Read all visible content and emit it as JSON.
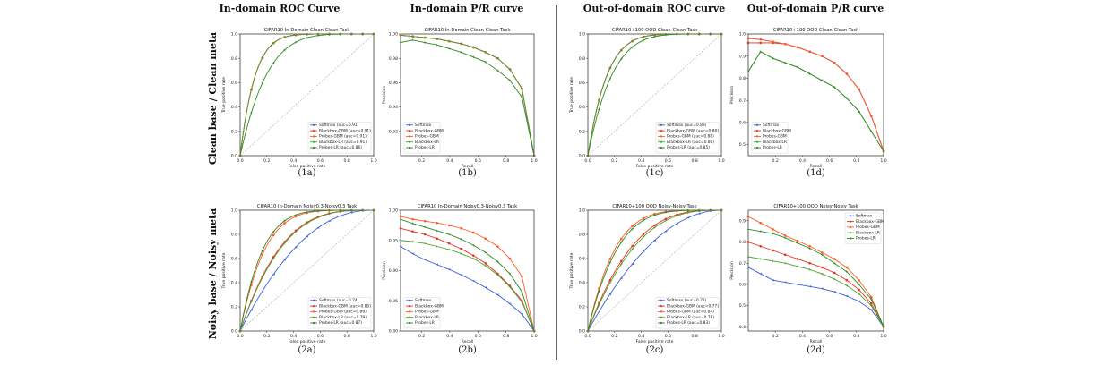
{
  "column_headers": [
    "In-domain ROC Curve",
    "In-domain P/R curve",
    "Out-of-domain ROC curve",
    "Out-of-domain P/R curve"
  ],
  "row_labels": [
    "Clean base / Clean meta",
    "Noisy base / Noisy meta"
  ],
  "colors": {
    "Softmax": "#3a5fe0",
    "Blackbox-GBM": "#e8321e",
    "Probes-GBM": "#ff5a28",
    "Blackbox-LR": "#4e9e30",
    "Probes-LR": "#2c8a1e"
  },
  "chart_data": [
    {
      "id": "1a",
      "caption": "(1a)",
      "type": "line",
      "title": "CIFAR10 In-Domain Clean-Clean Task",
      "xlabel": "False positive rate",
      "ylabel": "True positive rate",
      "xlim": [
        0,
        1
      ],
      "ylim": [
        0,
        1
      ],
      "xticks": [
        "0.0",
        "0.2",
        "0.4",
        "0.6",
        "0.8",
        "1.0"
      ],
      "yticks": [
        "0.0",
        "0.2",
        "0.4",
        "0.6",
        "0.8",
        "1.0"
      ],
      "diagonal": true,
      "legend_position": "lower-right",
      "series": [
        {
          "name": "Softmax (auc=0.91)",
          "family": "Softmax",
          "k": 9
        },
        {
          "name": "Blackbox-GBM (auc=0.91)",
          "family": "Blackbox-GBM",
          "k": 9
        },
        {
          "name": "Probes-GBM (auc=0.91)",
          "family": "Probes-GBM",
          "k": 9
        },
        {
          "name": "Blackbox-LR (auc=0.91)",
          "family": "Blackbox-LR",
          "k": 9
        },
        {
          "name": "Probes-LR (auc=0.86)",
          "family": "Probes-LR",
          "k": 5
        }
      ]
    },
    {
      "id": "1b",
      "caption": "(1b)",
      "type": "line",
      "title": "CIFAR10 In-Domain Clean-Clean Task",
      "xlabel": "Recall",
      "ylabel": "Precision",
      "xlim": [
        0.05,
        1
      ],
      "ylim": [
        0.9,
        1.0
      ],
      "xticks": [
        "0.2",
        "0.4",
        "0.6",
        "0.8",
        "1.0"
      ],
      "yticks": [
        "0.92",
        "0.94",
        "0.96",
        "0.98",
        "1.00"
      ],
      "legend_position": "lower-left",
      "series": [
        {
          "name": "Softmax",
          "family": "Softmax",
          "y": [
            0.999,
            0.998,
            0.997,
            0.996,
            0.994,
            0.992,
            0.989,
            0.985,
            0.98,
            0.971,
            0.955,
            0.9
          ]
        },
        {
          "name": "Blackbox-GBM",
          "family": "Blackbox-GBM",
          "y": [
            0.999,
            0.998,
            0.997,
            0.996,
            0.994,
            0.992,
            0.989,
            0.985,
            0.98,
            0.971,
            0.955,
            0.9
          ]
        },
        {
          "name": "Probes-GBM",
          "family": "Probes-GBM",
          "y": [
            0.999,
            0.998,
            0.997,
            0.996,
            0.994,
            0.992,
            0.989,
            0.985,
            0.98,
            0.971,
            0.955,
            0.9
          ]
        },
        {
          "name": "Blackbox-LR",
          "family": "Blackbox-LR",
          "y": [
            0.999,
            0.998,
            0.997,
            0.996,
            0.994,
            0.992,
            0.989,
            0.985,
            0.98,
            0.971,
            0.955,
            0.9
          ]
        },
        {
          "name": "Probes-LR",
          "family": "Probes-LR",
          "y": [
            0.993,
            0.995,
            0.993,
            0.991,
            0.988,
            0.985,
            0.981,
            0.977,
            0.97,
            0.962,
            0.948,
            0.9
          ]
        }
      ]
    },
    {
      "id": "1c",
      "caption": "(1c)",
      "type": "line",
      "title": "CIFAR10+100 OOD Clean-Clean Task",
      "xlabel": "False positive rate",
      "ylabel": "True positive rate",
      "xlim": [
        0,
        1
      ],
      "ylim": [
        0,
        1
      ],
      "xticks": [
        "0.0",
        "0.2",
        "0.4",
        "0.6",
        "0.8",
        "1.0"
      ],
      "yticks": [
        "0.0",
        "0.2",
        "0.4",
        "0.6",
        "0.8",
        "1.0"
      ],
      "diagonal": true,
      "legend_position": "lower-right",
      "series": [
        {
          "name": "Softmax (auc=0.88)",
          "family": "Softmax",
          "k": 7
        },
        {
          "name": "Blackbox-GBM (auc=0.88)",
          "family": "Blackbox-GBM",
          "k": 7
        },
        {
          "name": "Probes-GBM (auc=0.88)",
          "family": "Probes-GBM",
          "k": 7
        },
        {
          "name": "Blackbox-LR (auc=0.88)",
          "family": "Blackbox-LR",
          "k": 7
        },
        {
          "name": "Probes-LR (auc=0.85)",
          "family": "Probes-LR",
          "k": 5.5
        }
      ]
    },
    {
      "id": "1d",
      "caption": "(1d)",
      "type": "line",
      "title": "CIFAR10+100 OOD Clean-Clean Task",
      "xlabel": "Recall",
      "ylabel": "Precision",
      "xlim": [
        0,
        1
      ],
      "ylim": [
        0.45,
        1.0
      ],
      "xticks": [
        "0.2",
        "0.4",
        "0.6",
        "0.8",
        "1.0"
      ],
      "yticks": [
        "0.5",
        "0.6",
        "0.7",
        "0.8",
        "0.9",
        "1.0"
      ],
      "legend_position": "lower-left",
      "series": [
        {
          "name": "Softmax",
          "family": "Softmax",
          "y": [
            0.98,
            0.975,
            0.965,
            0.955,
            0.94,
            0.92,
            0.9,
            0.87,
            0.82,
            0.75,
            0.63,
            0.47
          ]
        },
        {
          "name": "Blackbox-GBM",
          "family": "Blackbox-GBM",
          "y": [
            0.96,
            0.96,
            0.96,
            0.955,
            0.94,
            0.92,
            0.9,
            0.87,
            0.82,
            0.75,
            0.63,
            0.47
          ]
        },
        {
          "name": "Probes-GBM",
          "family": "Probes-GBM",
          "y": [
            0.98,
            0.975,
            0.965,
            0.955,
            0.94,
            0.92,
            0.9,
            0.87,
            0.82,
            0.75,
            0.63,
            0.47
          ]
        },
        {
          "name": "Blackbox-LR",
          "family": "Blackbox-LR",
          "y": [
            0.83,
            0.92,
            0.89,
            0.87,
            0.85,
            0.82,
            0.79,
            0.76,
            0.71,
            0.65,
            0.56,
            0.47
          ]
        },
        {
          "name": "Probes-LR",
          "family": "Probes-LR",
          "y": [
            0.83,
            0.92,
            0.89,
            0.87,
            0.85,
            0.82,
            0.79,
            0.76,
            0.71,
            0.65,
            0.56,
            0.47
          ]
        }
      ]
    },
    {
      "id": "2a",
      "caption": "(2a)",
      "type": "line",
      "title": "CIFAR10 In-Domain Noisy0.3-Noisy0.3 Task",
      "xlabel": "False positive rate",
      "ylabel": "True positive rate",
      "xlim": [
        0,
        1
      ],
      "ylim": [
        0,
        1
      ],
      "xticks": [
        "0.0",
        "0.2",
        "0.4",
        "0.6",
        "0.8",
        "1.0"
      ],
      "yticks": [
        "0.0",
        "0.2",
        "0.4",
        "0.6",
        "0.8",
        "1.0"
      ],
      "diagonal": true,
      "legend_position": "lower-right",
      "series": [
        {
          "name": "Softmax (auc=0.74)",
          "family": "Softmax",
          "k": 2.2
        },
        {
          "name": "Blackbox-GBM (auc=0.80)",
          "family": "Blackbox-GBM",
          "k": 3.3
        },
        {
          "name": "Probes-GBM (auc=0.86)",
          "family": "Probes-GBM",
          "k": 5.5
        },
        {
          "name": "Blackbox-LR (auc=0.79)",
          "family": "Blackbox-LR",
          "k": 3.2
        },
        {
          "name": "Probes-LR (auc=0.87)",
          "family": "Probes-LR",
          "k": 6
        }
      ]
    },
    {
      "id": "2b",
      "caption": "(2b)",
      "type": "line",
      "title": "CIFAR10 In-Domain Noisy0.3-Noisy0.3 Task",
      "xlabel": "Recall",
      "ylabel": "Precision",
      "xlim": [
        0.05,
        1
      ],
      "ylim": [
        0.8,
        1.0
      ],
      "xticks": [
        "0.2",
        "0.4",
        "0.6",
        "0.8",
        "1.0"
      ],
      "yticks": [
        "0.80",
        "0.85",
        "0.90",
        "0.95",
        "1.00"
      ],
      "legend_position": "lower-left",
      "series": [
        {
          "name": "Softmax",
          "family": "Softmax",
          "y": [
            0.94,
            0.928,
            0.918,
            0.91,
            0.902,
            0.893,
            0.883,
            0.872,
            0.86,
            0.845,
            0.828,
            0.8
          ]
        },
        {
          "name": "Blackbox-GBM",
          "family": "Blackbox-GBM",
          "y": [
            0.97,
            0.965,
            0.96,
            0.953,
            0.945,
            0.936,
            0.925,
            0.912,
            0.895,
            0.875,
            0.85,
            0.8
          ]
        },
        {
          "name": "Probes-GBM",
          "family": "Probes-GBM",
          "y": [
            0.99,
            0.985,
            0.982,
            0.979,
            0.975,
            0.97,
            0.963,
            0.953,
            0.94,
            0.92,
            0.89,
            0.8
          ]
        },
        {
          "name": "Blackbox-LR",
          "family": "Blackbox-LR",
          "y": [
            0.95,
            0.948,
            0.945,
            0.94,
            0.935,
            0.928,
            0.92,
            0.908,
            0.893,
            0.873,
            0.848,
            0.8
          ]
        },
        {
          "name": "Probes-LR",
          "family": "Probes-LR",
          "y": [
            0.985,
            0.978,
            0.972,
            0.966,
            0.96,
            0.952,
            0.942,
            0.93,
            0.915,
            0.895,
            0.865,
            0.8
          ]
        }
      ]
    },
    {
      "id": "2c",
      "caption": "(2c)",
      "type": "line",
      "title": "CIFAR10+100 OOD Noisy-Noisy Task",
      "xlabel": "False positive rate",
      "ylabel": "True positive rate",
      "xlim": [
        0,
        1
      ],
      "ylim": [
        0,
        1
      ],
      "xticks": [
        "0.0",
        "0.2",
        "0.4",
        "0.6",
        "0.8",
        "1.0"
      ],
      "yticks": [
        "0.0",
        "0.2",
        "0.4",
        "0.6",
        "0.8",
        "1.0"
      ],
      "diagonal": true,
      "legend_position": "lower-right",
      "series": [
        {
          "name": "Softmax (auc=0.72)",
          "family": "Softmax",
          "k": 2
        },
        {
          "name": "Blackbox-GBM (auc=0.77)",
          "family": "Blackbox-GBM",
          "k": 3
        },
        {
          "name": "Probes-GBM (auc=0.84)",
          "family": "Probes-GBM",
          "k": 5
        },
        {
          "name": "Blackbox-LR (auc=0.76)",
          "family": "Blackbox-LR",
          "k": 2.8
        },
        {
          "name": "Probes-LR (auc=0.83)",
          "family": "Probes-LR",
          "k": 4.6
        }
      ]
    },
    {
      "id": "2d",
      "caption": "(2d)",
      "type": "line",
      "title": "CIFAR10+100 OOD Noisy-Noisy Task",
      "xlabel": "Recall",
      "ylabel": "Precision",
      "xlim": [
        0,
        1
      ],
      "ylim": [
        0.38,
        0.95
      ],
      "xticks": [
        "0.2",
        "0.4",
        "0.6",
        "0.8",
        "1.0"
      ],
      "yticks": [
        "0.4",
        "0.5",
        "0.6",
        "0.7",
        "0.8",
        "0.9"
      ],
      "legend_position": "top-right",
      "series": [
        {
          "name": "Softmax",
          "family": "Softmax",
          "y": [
            0.68,
            0.65,
            0.62,
            0.61,
            0.6,
            0.59,
            0.58,
            0.565,
            0.545,
            0.52,
            0.48,
            0.4
          ]
        },
        {
          "name": "Blackbox-GBM",
          "family": "Blackbox-GBM",
          "y": [
            0.8,
            0.78,
            0.76,
            0.74,
            0.72,
            0.7,
            0.68,
            0.655,
            0.62,
            0.575,
            0.51,
            0.4
          ]
        },
        {
          "name": "Probes-GBM",
          "family": "Probes-GBM",
          "y": [
            0.92,
            0.89,
            0.86,
            0.83,
            0.805,
            0.78,
            0.75,
            0.72,
            0.68,
            0.62,
            0.54,
            0.4
          ]
        },
        {
          "name": "Blackbox-LR",
          "family": "Blackbox-LR",
          "y": [
            0.73,
            0.72,
            0.71,
            0.7,
            0.685,
            0.67,
            0.65,
            0.625,
            0.595,
            0.555,
            0.5,
            0.4
          ]
        },
        {
          "name": "Probes-LR",
          "family": "Probes-LR",
          "y": [
            0.86,
            0.85,
            0.84,
            0.82,
            0.795,
            0.77,
            0.74,
            0.7,
            0.66,
            0.6,
            0.53,
            0.4
          ]
        }
      ]
    }
  ]
}
